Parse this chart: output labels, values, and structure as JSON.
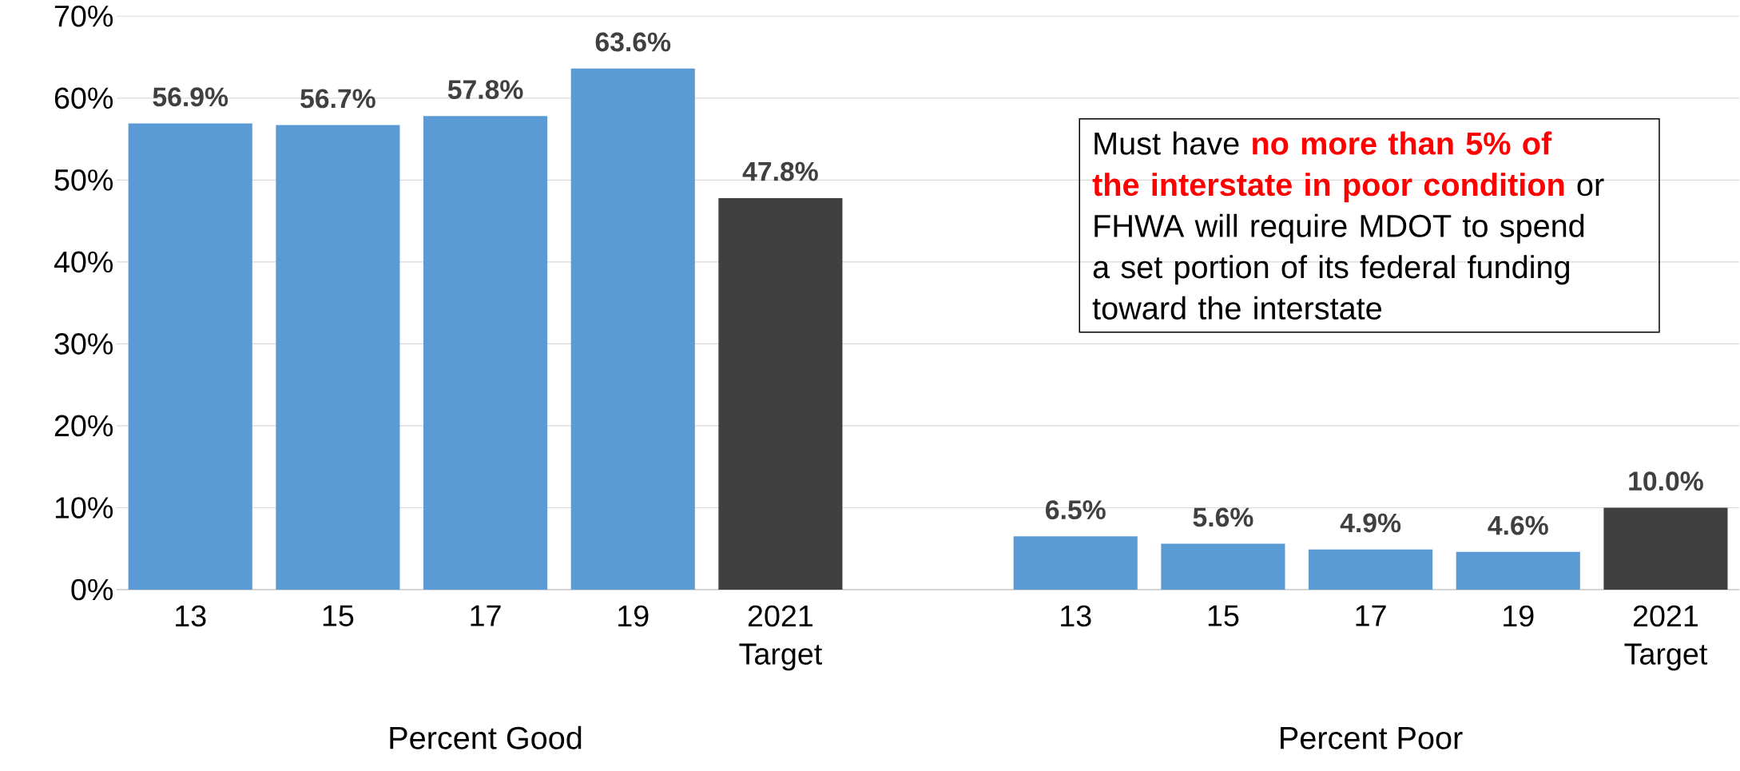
{
  "chart_data": {
    "type": "bar",
    "categories": [
      "13",
      "15",
      "17",
      "19",
      "2021 Target",
      null,
      "13",
      "15",
      "17",
      "19",
      "2021 Target"
    ],
    "values": [
      56.9,
      56.7,
      57.8,
      63.6,
      47.8,
      null,
      6.5,
      5.6,
      4.9,
      4.6,
      10.0
    ],
    "colors": [
      "#5b9bd5",
      "#5b9bd5",
      "#5b9bd5",
      "#5b9bd5",
      "#404040",
      "#5b9bd5",
      "#5b9bd5",
      "#5b9bd5",
      "#5b9bd5",
      "#5b9bd5",
      "#404040"
    ],
    "value_labels": [
      "56.9%",
      "56.7%",
      "57.8%",
      "63.6%",
      "47.8%",
      null,
      "6.5%",
      "5.6%",
      "4.9%",
      "4.6%",
      "10.0%"
    ],
    "ylim": [
      0,
      70
    ],
    "yticks": [
      {
        "value": 0,
        "label": "0%"
      },
      {
        "value": 10,
        "label": "10%"
      },
      {
        "value": 20,
        "label": "20%"
      },
      {
        "value": 30,
        "label": "30%"
      },
      {
        "value": 40,
        "label": "40%"
      },
      {
        "value": 50,
        "label": "50%"
      },
      {
        "value": 60,
        "label": "60%"
      },
      {
        "value": 70,
        "label": "70%"
      }
    ],
    "grid": "y",
    "annotations": [
      "Percent Good",
      "Percent Poor",
      "Must have **no more than 5% of the interstate in poor condition** or FHWA will require MDOT to spend a set portion of its federal funding toward the interstate"
    ]
  }
}
